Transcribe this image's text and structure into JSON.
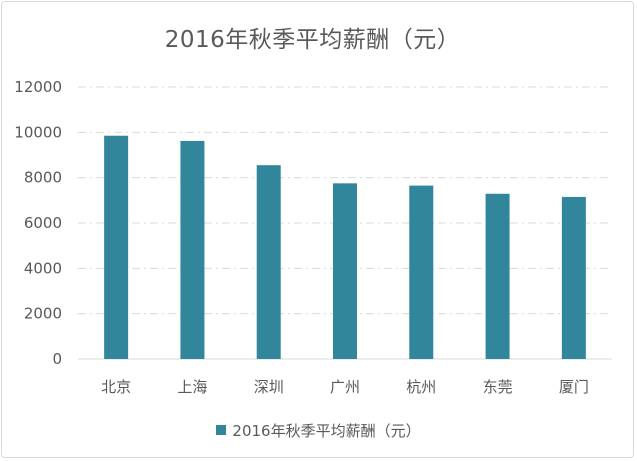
{
  "chart_data": {
    "type": "bar",
    "title": "2016年秋季平均薪酬（元）",
    "categories": [
      "北京",
      "上海",
      "深圳",
      "广州",
      "杭州",
      "东莞",
      "厦门"
    ],
    "series": [
      {
        "name": "2016年秋季平均薪酬（元）",
        "values": [
          9850,
          9620,
          8550,
          7750,
          7650,
          7290,
          7150
        ],
        "color": "#31869b"
      }
    ],
    "ylim": [
      0,
      12000
    ],
    "yticks": [
      0,
      2000,
      4000,
      6000,
      8000,
      10000,
      12000
    ],
    "grid": true,
    "grid_style": "dash-dot",
    "legend_position": "bottom"
  }
}
